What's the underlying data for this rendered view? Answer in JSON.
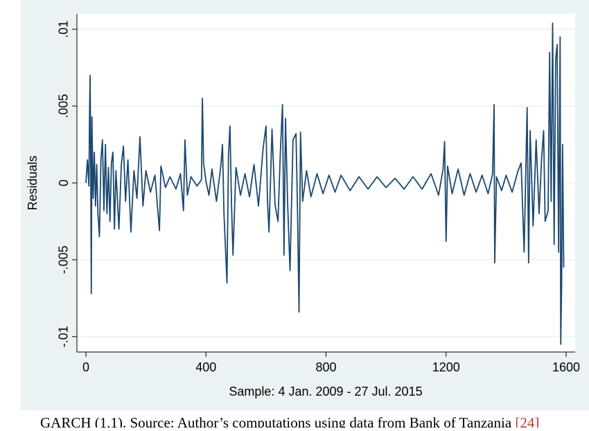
{
  "chart_data": {
    "type": "line",
    "ylabel": "Residuals",
    "xlabel": "Sample: 4 Jan. 2009 - 27 Jul. 2015",
    "color": "#1a476f",
    "grid": true,
    "xlim": [
      -30,
      1630
    ],
    "ylim": [
      -0.011,
      0.011
    ],
    "xticks": [
      0,
      400,
      800,
      1200,
      1600
    ],
    "yticks": [
      {
        "value": 0.01,
        "label": ".01"
      },
      {
        "value": 0.005,
        "label": ".005"
      },
      0,
      {
        "value": -0.005,
        "label": "-.005"
      },
      {
        "value": -0.01,
        "label": "-.01"
      }
    ],
    "x": [
      0,
      5,
      10,
      12,
      14,
      16,
      18,
      20,
      24,
      28,
      32,
      36,
      40,
      45,
      50,
      55,
      60,
      65,
      70,
      75,
      80,
      85,
      90,
      95,
      100,
      110,
      118,
      125,
      132,
      140,
      150,
      160,
      170,
      180,
      190,
      200,
      215,
      230,
      245,
      250,
      265,
      280,
      300,
      315,
      325,
      330,
      338,
      350,
      370,
      385,
      388,
      392,
      400,
      410,
      420,
      435,
      450,
      455,
      460,
      470,
      475,
      480,
      485,
      490,
      500,
      515,
      530,
      545,
      560,
      575,
      590,
      600,
      605,
      610,
      620,
      630,
      640,
      648,
      655,
      660,
      665,
      672,
      680,
      690,
      700,
      705,
      710,
      715,
      722,
      735,
      750,
      770,
      790,
      810,
      830,
      850,
      880,
      910,
      940,
      970,
      1000,
      1030,
      1060,
      1090,
      1120,
      1150,
      1175,
      1190,
      1195,
      1200,
      1205,
      1220,
      1240,
      1260,
      1280,
      1300,
      1320,
      1340,
      1355,
      1360,
      1362,
      1368,
      1385,
      1400,
      1420,
      1440,
      1450,
      1460,
      1470,
      1475,
      1480,
      1490,
      1500,
      1510,
      1518,
      1525,
      1530,
      1540,
      1545,
      1550,
      1555,
      1560,
      1565,
      1570,
      1575,
      1580,
      1582,
      1585,
      1588,
      1592
    ],
    "values": [
      0,
      0.0015,
      -0.0002,
      0.0043,
      0.007,
      0.001,
      -0.0072,
      0.0043,
      -0.001,
      0.002,
      -0.0015,
      0.0012,
      -0.002,
      -0.0035,
      0.0015,
      0.0028,
      -0.0018,
      0.0025,
      -0.002,
      0.001,
      -0.0025,
      0.0013,
      0.002,
      -0.003,
      0.0008,
      -0.003,
      0.0012,
      0.0024,
      -0.0012,
      0.0015,
      -0.0032,
      0.0008,
      -0.001,
      0.003,
      -0.0015,
      0.0008,
      -0.0006,
      0.0005,
      -0.0031,
      0.0011,
      -0.0003,
      0.0004,
      -0.0004,
      0.0006,
      -0.0018,
      0.0028,
      -0.0008,
      0.0004,
      -0.0002,
      0.0002,
      0.0055,
      0.0013,
      0.0001,
      -0.0008,
      0.0009,
      -0.0012,
      0.0012,
      0.0025,
      -0.002,
      -0.0065,
      0.0018,
      0.0037,
      -0.0013,
      -0.0047,
      0.001,
      -0.0008,
      0.0006,
      -0.0009,
      0.0012,
      -0.0015,
      0.0022,
      0.0037,
      -0.0012,
      -0.0032,
      0.0035,
      -0.0014,
      -0.0025,
      0.0021,
      0.0051,
      -0.0047,
      0.0042,
      -0.0013,
      -0.0057,
      0.0028,
      0.0032,
      -0.0018,
      -0.0084,
      0.0033,
      -0.0012,
      0.0008,
      -0.0009,
      0.0006,
      -0.0007,
      0.0005,
      -0.0006,
      0.0005,
      -0.0005,
      0.0004,
      -0.0004,
      0.0004,
      -0.0003,
      0.0003,
      -0.0004,
      0.0004,
      -0.0004,
      0.0006,
      -0.0008,
      0.0009,
      0.0027,
      -0.0038,
      0.0011,
      -0.0007,
      0.0009,
      -0.0008,
      0.0006,
      -0.0006,
      0.0005,
      -0.0007,
      0.0006,
      0.0051,
      -0.0052,
      0.0004,
      -0.0005,
      0.0005,
      -0.0006,
      0.0008,
      0.0013,
      -0.0045,
      0.0049,
      -0.0052,
      0.0034,
      -0.0028,
      0.0028,
      -0.002,
      0.0015,
      0.0034,
      -0.0025,
      -0.0018,
      0.0085,
      -0.0012,
      0.0104,
      -0.004,
      0.008,
      0.009,
      -0.0045,
      0.0095,
      -0.0105,
      -0.0065,
      0.0025,
      -0.0055
    ]
  },
  "caption": {
    "text": "GARCH (1,1). Source: Author’s computations using data from Bank of Tanzania",
    "ref": "[24]"
  }
}
